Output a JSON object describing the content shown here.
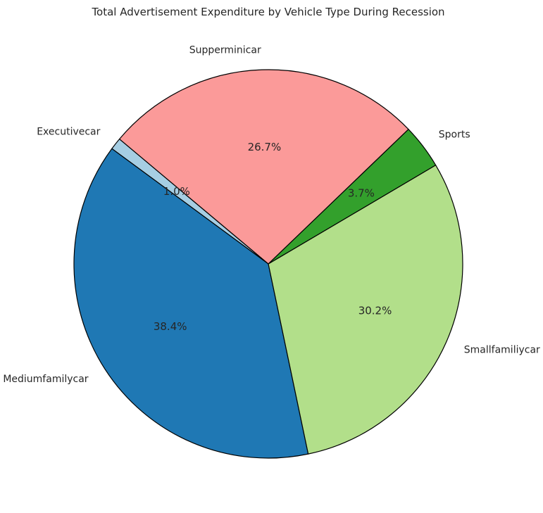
{
  "chart_data": {
    "type": "pie",
    "title": "Total Advertisement Expenditure by Vehicle Type During Recession",
    "categories": [
      "Executivecar",
      "Mediumfamilycar",
      "Smallfamiliycar",
      "Sports",
      "Supperminicar"
    ],
    "values": [
      1.0,
      38.4,
      30.2,
      3.7,
      26.7
    ],
    "percent_labels": [
      "1.0%",
      "38.4%",
      "30.2%",
      "3.7%",
      "26.7%"
    ],
    "colors": [
      "#a6cee3",
      "#1f78b4",
      "#b2df8a",
      "#33a02c",
      "#fb9a99"
    ],
    "edge_color": "#000000",
    "start_angle_deg": 140,
    "direction": "counterclockwise"
  }
}
